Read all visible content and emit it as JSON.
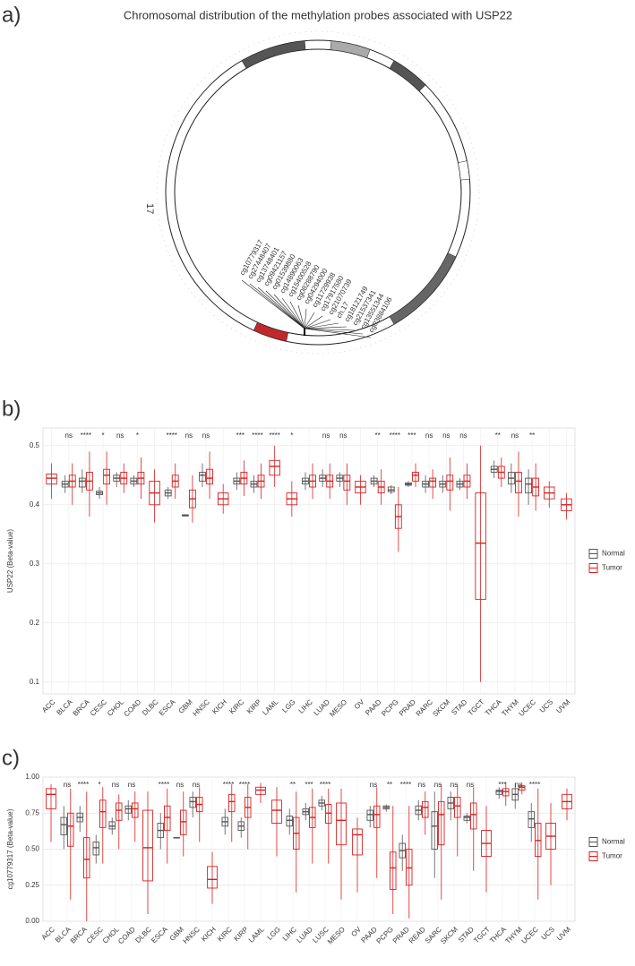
{
  "chart_data": [
    {
      "type": "circos",
      "panel_label": "a)",
      "title": "Chromosomal distribution of the methylation probes associated with USP22",
      "chromosome": "17",
      "probes": [
        "cg10779317",
        "cg27448407",
        "cg13748401",
        "cg09421157",
        "cg01539880",
        "cg14890063",
        "cg15400528",
        "cg08288790",
        "cg04294000",
        "cg11729938",
        "cg17917580",
        "cg21070739",
        "ch.17",
        "cg18121749",
        "cg21537341",
        "cg13551344",
        "cg03884106"
      ]
    },
    {
      "type": "box",
      "panel_label": "b)",
      "ylabel": "USP22 (Beta-value)",
      "ylim": [
        0.08,
        0.53
      ],
      "yticks": [
        0.1,
        0.2,
        0.3,
        0.4,
        0.5
      ],
      "grid": true,
      "legend": "right",
      "categories": [
        "ACC",
        "BLCA",
        "BRCA",
        "CESC",
        "CHOL",
        "COAD",
        "DLBC",
        "ESCA",
        "GBM",
        "HNSC",
        "KICH",
        "KIRC",
        "KIRP",
        "LAML",
        "LGG",
        "LIHC",
        "LUAD",
        "MESO",
        "OV",
        "PAAD",
        "PCPG",
        "PRAD",
        "RARC",
        "SKCM",
        "STAD",
        "TGCT",
        "THCA",
        "THYM",
        "UCEC",
        "UCS",
        "UVM"
      ],
      "annotations": [
        null,
        "ns",
        "****",
        "*",
        "ns",
        "*",
        null,
        "****",
        "ns",
        "ns",
        null,
        "***",
        "****",
        "****",
        "*",
        null,
        "ns",
        "ns",
        null,
        "**",
        "****",
        "***",
        "ns",
        "ns",
        "ns",
        null,
        "**",
        "ns",
        "**",
        null,
        null
      ],
      "series": [
        {
          "name": "Normal",
          "color": "#555555",
          "median": [
            null,
            0.435,
            0.44,
            0.42,
            0.445,
            0.44,
            null,
            0.42,
            0.382,
            0.45,
            null,
            0.44,
            0.435,
            null,
            null,
            0.44,
            0.445,
            0.445,
            null,
            0.44,
            0.425,
            0.435,
            0.435,
            0.435,
            0.435,
            null,
            0.46,
            0.445,
            0.435,
            null,
            null
          ],
          "q1": [
            null,
            0.43,
            0.43,
            0.417,
            0.44,
            0.435,
            null,
            0.415,
            0.381,
            0.44,
            null,
            0.435,
            0.43,
            null,
            null,
            0.435,
            0.44,
            0.44,
            null,
            0.435,
            0.422,
            0.433,
            0.43,
            0.43,
            0.43,
            null,
            0.455,
            0.435,
            0.42,
            null,
            null
          ],
          "q3": [
            null,
            0.44,
            0.445,
            0.423,
            0.45,
            0.445,
            null,
            0.425,
            0.383,
            0.455,
            null,
            0.445,
            0.44,
            null,
            null,
            0.445,
            0.45,
            0.45,
            null,
            0.445,
            0.43,
            0.437,
            0.44,
            0.44,
            0.44,
            null,
            0.465,
            0.455,
            0.445,
            null,
            null
          ],
          "lower": [
            null,
            0.42,
            0.42,
            0.41,
            0.43,
            0.43,
            null,
            0.41,
            0.38,
            0.43,
            null,
            0.425,
            0.42,
            null,
            null,
            0.425,
            0.43,
            0.43,
            null,
            0.43,
            0.418,
            0.43,
            0.42,
            0.42,
            0.425,
            null,
            0.445,
            0.42,
            0.4,
            null,
            null
          ],
          "upper": [
            null,
            0.45,
            0.46,
            0.43,
            0.455,
            0.45,
            null,
            0.43,
            0.384,
            0.47,
            null,
            0.455,
            0.45,
            null,
            null,
            0.455,
            0.46,
            0.455,
            null,
            0.45,
            0.433,
            0.44,
            0.45,
            0.45,
            0.445,
            null,
            0.475,
            0.47,
            0.46,
            null,
            null
          ]
        },
        {
          "name": "Tumor",
          "color": "#d62020",
          "median": [
            0.445,
            0.44,
            0.44,
            0.45,
            0.445,
            0.445,
            0.42,
            0.44,
            0.41,
            0.445,
            0.41,
            0.445,
            0.44,
            0.465,
            0.41,
            0.44,
            0.44,
            0.44,
            0.43,
            0.43,
            0.38,
            0.45,
            0.44,
            0.44,
            0.44,
            0.335,
            0.455,
            0.44,
            0.43,
            0.42,
            0.4
          ],
          "q1": [
            0.435,
            0.43,
            0.425,
            0.435,
            0.435,
            0.435,
            0.4,
            0.43,
            0.395,
            0.435,
            0.4,
            0.435,
            0.43,
            0.45,
            0.4,
            0.43,
            0.43,
            0.425,
            0.42,
            0.42,
            0.36,
            0.44,
            0.43,
            0.425,
            0.43,
            0.24,
            0.445,
            0.42,
            0.415,
            0.41,
            0.39
          ],
          "q3": [
            0.452,
            0.45,
            0.455,
            0.46,
            0.455,
            0.455,
            0.44,
            0.45,
            0.425,
            0.46,
            0.42,
            0.455,
            0.45,
            0.475,
            0.42,
            0.45,
            0.45,
            0.45,
            0.44,
            0.44,
            0.4,
            0.455,
            0.445,
            0.45,
            0.45,
            0.42,
            0.465,
            0.455,
            0.445,
            0.43,
            0.41
          ],
          "lower": [
            0.41,
            0.4,
            0.38,
            0.4,
            0.42,
            0.41,
            0.37,
            0.41,
            0.37,
            0.41,
            0.385,
            0.415,
            0.41,
            0.43,
            0.38,
            0.41,
            0.41,
            0.4,
            0.4,
            0.4,
            0.32,
            0.43,
            0.41,
            0.39,
            0.41,
            0.1,
            0.43,
            0.38,
            0.39,
            0.395,
            0.375
          ],
          "upper": [
            0.47,
            0.47,
            0.49,
            0.49,
            0.47,
            0.48,
            0.46,
            0.47,
            0.45,
            0.49,
            0.435,
            0.475,
            0.47,
            0.5,
            0.44,
            0.47,
            0.47,
            0.47,
            0.45,
            0.46,
            0.43,
            0.47,
            0.46,
            0.48,
            0.47,
            0.5,
            0.48,
            0.49,
            0.47,
            0.44,
            0.42
          ]
        }
      ]
    },
    {
      "type": "box",
      "panel_label": "c)",
      "ylabel": "cg10779317 (Beta-value)",
      "ylim": [
        0,
        1
      ],
      "yticks": [
        {
          "value": 0,
          "label": "0.00"
        },
        {
          "value": 0.25,
          "label": "0.25"
        },
        {
          "value": 0.5,
          "label": "0.50"
        },
        {
          "value": 0.75,
          "label": "0.75"
        },
        {
          "value": 1,
          "label": "1.00"
        }
      ],
      "grid": true,
      "legend": "right",
      "categories": [
        "ACC",
        "BLCA",
        "BRCA",
        "CESC",
        "CHOL",
        "COAD",
        "DLBC",
        "ESCA",
        "GBM",
        "HNSC",
        "KICH",
        "KIRC",
        "KIRP",
        "LAML",
        "LGG",
        "LIHC",
        "LUAD",
        "LUSC",
        "MESO",
        "OV",
        "PAAD",
        "PCPG",
        "PRAD",
        "READ",
        "SARC",
        "SKCM",
        "STAD",
        "TGCT",
        "THCA",
        "THYM",
        "UCEC",
        "UCS",
        "UVM"
      ],
      "annotations": [
        null,
        "ns",
        "****",
        "*",
        "ns",
        "ns",
        null,
        "****",
        "ns",
        "ns",
        null,
        "****",
        "****",
        null,
        null,
        "**",
        "***",
        "****",
        null,
        null,
        "ns",
        "**",
        "****",
        "ns",
        "ns",
        "ns",
        "ns",
        null,
        "***",
        "ns",
        "****",
        null,
        null
      ],
      "series": [
        {
          "name": "Normal",
          "color": "#555555",
          "median": [
            null,
            0.67,
            0.72,
            0.51,
            0.66,
            0.78,
            null,
            0.63,
            0.58,
            0.83,
            null,
            0.69,
            0.66,
            null,
            null,
            0.7,
            0.76,
            0.82,
            null,
            null,
            0.74,
            0.79,
            0.49,
            0.77,
            0.66,
            0.82,
            0.72,
            null,
            0.9,
            0.88,
            0.71,
            null,
            null
          ],
          "q1": [
            null,
            0.6,
            0.69,
            0.46,
            0.64,
            0.75,
            null,
            0.58,
            0.58,
            0.79,
            null,
            0.66,
            0.63,
            null,
            null,
            0.66,
            0.74,
            0.8,
            null,
            null,
            0.7,
            0.78,
            0.44,
            0.74,
            0.5,
            0.78,
            0.7,
            null,
            0.88,
            0.84,
            0.65,
            null,
            null
          ],
          "q3": [
            null,
            0.72,
            0.75,
            0.55,
            0.69,
            0.8,
            null,
            0.68,
            0.58,
            0.86,
            null,
            0.72,
            0.69,
            null,
            null,
            0.73,
            0.78,
            0.84,
            null,
            null,
            0.77,
            0.8,
            0.54,
            0.8,
            0.76,
            0.86,
            0.73,
            null,
            0.91,
            0.92,
            0.76,
            null,
            null
          ],
          "lower": [
            null,
            0.5,
            0.62,
            0.4,
            0.6,
            0.7,
            null,
            0.5,
            0.58,
            0.72,
            null,
            0.6,
            0.58,
            null,
            null,
            0.6,
            0.7,
            0.77,
            null,
            null,
            0.65,
            0.76,
            0.35,
            0.7,
            0.3,
            0.7,
            0.68,
            null,
            0.85,
            0.78,
            0.55,
            null,
            null
          ],
          "upper": [
            null,
            0.8,
            0.8,
            0.6,
            0.72,
            0.84,
            null,
            0.75,
            0.58,
            0.9,
            null,
            0.78,
            0.72,
            null,
            null,
            0.78,
            0.82,
            0.87,
            null,
            null,
            0.8,
            0.81,
            0.6,
            0.84,
            0.9,
            0.9,
            0.75,
            null,
            0.93,
            0.96,
            0.82,
            null,
            null
          ]
        },
        {
          "name": "Tumor",
          "color": "#d62020",
          "median": [
            0.88,
            0.66,
            0.43,
            0.76,
            0.77,
            0.78,
            0.51,
            0.72,
            0.69,
            0.81,
            0.29,
            0.83,
            0.79,
            0.91,
            0.77,
            0.61,
            0.72,
            0.75,
            0.7,
            0.6,
            0.74,
            0.37,
            0.37,
            0.79,
            0.74,
            0.8,
            0.74,
            0.54,
            0.9,
            0.93,
            0.56,
            0.59,
            0.83
          ],
          "q1": [
            0.78,
            0.52,
            0.3,
            0.65,
            0.7,
            0.72,
            0.28,
            0.63,
            0.6,
            0.76,
            0.23,
            0.76,
            0.72,
            0.88,
            0.68,
            0.5,
            0.65,
            0.68,
            0.53,
            0.46,
            0.65,
            0.22,
            0.25,
            0.72,
            0.53,
            0.72,
            0.64,
            0.45,
            0.87,
            0.91,
            0.45,
            0.5,
            0.78
          ],
          "q3": [
            0.92,
            0.75,
            0.58,
            0.84,
            0.82,
            0.82,
            0.77,
            0.8,
            0.77,
            0.86,
            0.38,
            0.88,
            0.86,
            0.93,
            0.84,
            0.72,
            0.79,
            0.81,
            0.82,
            0.64,
            0.8,
            0.48,
            0.5,
            0.83,
            0.83,
            0.86,
            0.82,
            0.63,
            0.92,
            0.94,
            0.68,
            0.68,
            0.88
          ],
          "lower": [
            0.55,
            0.15,
            0,
            0.4,
            0.5,
            0.55,
            0.05,
            0.4,
            0.45,
            0.55,
            0.12,
            0.55,
            0.5,
            0.82,
            0.45,
            0.2,
            0.4,
            0.4,
            0.15,
            0.2,
            0.3,
            0.05,
            0.02,
            0.6,
            0.15,
            0.45,
            0.35,
            0.2,
            0.8,
            0.88,
            0.15,
            0.25,
            0.7
          ],
          "upper": [
            0.95,
            0.92,
            0.9,
            0.93,
            0.88,
            0.9,
            0.9,
            0.92,
            0.9,
            0.93,
            0.48,
            0.95,
            0.95,
            0.96,
            0.93,
            0.9,
            0.92,
            0.92,
            0.92,
            0.72,
            0.93,
            0.8,
            0.8,
            0.9,
            0.95,
            0.95,
            0.93,
            0.8,
            0.96,
            0.96,
            0.92,
            0.82,
            0.92
          ]
        }
      ]
    }
  ]
}
